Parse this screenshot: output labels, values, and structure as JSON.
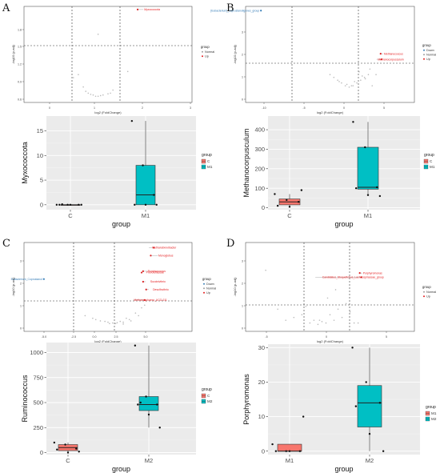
{
  "panels": [
    {
      "letter": "A",
      "volcano": {
        "x_label": "log2 (FoldChange)",
        "y_label": "-log10 (p-adj)",
        "x_ticks": [
          "0",
          "1",
          "2",
          "3"
        ],
        "y_ticks": [
          "0.6",
          "0.9",
          "1.2",
          "1.5",
          "1.8"
        ],
        "legend_title": "group",
        "legend_items": [
          {
            "label": "Normal",
            "color": "#9e9e9e"
          },
          {
            "label": "Up",
            "color": "#e41a1c"
          }
        ],
        "labels": [
          {
            "text": "Myxococcota",
            "color": "#e41a1c"
          }
        ]
      },
      "box": {
        "y_label": "Myxococcota",
        "x_label": "group",
        "categories": [
          "C",
          "M1"
        ],
        "y_ticks": [
          "0",
          "5",
          "10",
          "15"
        ],
        "legend_title": "group",
        "legend_items": [
          {
            "label": "C",
            "color": "#f8766d"
          },
          {
            "label": "M1",
            "color": "#00bfc4"
          }
        ]
      }
    },
    {
      "letter": "B",
      "volcano": {
        "x_label": "log2 (FoldChange)",
        "y_label": "-log10 (p-adj)",
        "x_ticks": [
          "-10",
          "-5",
          "0",
          "5"
        ],
        "y_ticks": [
          "0",
          "1",
          "2",
          "3"
        ],
        "legend_title": "group",
        "legend_items": [
          {
            "label": "Down",
            "color": "#377eb8"
          },
          {
            "label": "Normal",
            "color": "#9e9e9e"
          },
          {
            "label": "Up",
            "color": "#e41a1c"
          }
        ],
        "labels": [
          {
            "text": "[Eubacterium]_coprostanoligenes_group",
            "color": "#377eb8"
          },
          {
            "text": "Methanococcus",
            "color": "#e41a1c"
          },
          {
            "text": "Methanocorpusculum",
            "color": "#e41a1c"
          }
        ]
      },
      "box": {
        "y_label": "Methanocorpusculum",
        "x_label": "group",
        "categories": [
          "C",
          "M1"
        ],
        "y_ticks": [
          "0",
          "100",
          "200",
          "300",
          "400"
        ],
        "legend_title": "group",
        "legend_items": [
          {
            "label": "C",
            "color": "#f8766d"
          },
          {
            "label": "M1",
            "color": "#00bfc4"
          }
        ]
      }
    },
    {
      "letter": "C",
      "volcano": {
        "x_label": "log2 (FoldChange)",
        "y_label": "-log10 (p-adj)",
        "x_ticks": [
          "-5.0",
          "-2.5",
          "0.0",
          "2.5",
          "5.0"
        ],
        "y_ticks": [
          "0",
          "1",
          "2",
          "3"
        ],
        "legend_title": "group",
        "legend_items": [
          {
            "label": "Down",
            "color": "#377eb8"
          },
          {
            "label": "Normal",
            "color": "#9e9e9e"
          },
          {
            "label": "Up",
            "color": "#e41a1c"
          }
        ],
        "labels": [
          {
            "text": "Methanobrevibacter",
            "color": "#e41a1c"
          },
          {
            "text": "Monoglobus",
            "color": "#e41a1c"
          },
          {
            "text": "Eubacterium_Coprostanol",
            "color": "#377eb8"
          },
          {
            "text": "Ruminococcus",
            "color": "#e41a1c"
          },
          {
            "text": "Prevotellaceae",
            "color": "#e41a1c"
          },
          {
            "text": "Succinivibrio",
            "color": "#e41a1c"
          },
          {
            "text": "Desulfovibrio",
            "color": "#e41a1c"
          },
          {
            "text": "Methanosphaera_UCG-011",
            "color": "#e41a1c"
          }
        ]
      },
      "box": {
        "y_label": "Ruminococcus",
        "x_label": "group",
        "categories": [
          "C",
          "M2"
        ],
        "y_ticks": [
          "0",
          "250",
          "500",
          "750",
          "1000"
        ],
        "legend_title": "group",
        "legend_items": [
          {
            "label": "C",
            "color": "#f8766d"
          },
          {
            "label": "M2",
            "color": "#00bfc4"
          }
        ]
      }
    },
    {
      "letter": "D",
      "volcano": {
        "x_label": "log2 (FoldChange)",
        "y_label": "-log10 (p-adj)",
        "x_ticks": [
          "-5",
          "0",
          "5"
        ],
        "y_ticks": [
          "0",
          "1",
          "2",
          "3"
        ],
        "legend_title": "group",
        "legend_items": [
          {
            "label": "Normal",
            "color": "#9e9e9e"
          },
          {
            "label": "Up",
            "color": "#e41a1c"
          }
        ],
        "labels": [
          {
            "text": "Porphyromonas",
            "color": "#e41a1c"
          },
          {
            "text": "Candidatus_Stoquefichus_Lachnospiraceae_group",
            "color": "#e41a1c"
          }
        ]
      },
      "box": {
        "y_label": "Porphyromonas",
        "x_label": "group",
        "categories": [
          "M1",
          "M2"
        ],
        "y_ticks": [
          "0",
          "10",
          "20",
          "30"
        ],
        "legend_title": "group",
        "legend_items": [
          {
            "label": "M1",
            "color": "#f8766d"
          },
          {
            "label": "M2",
            "color": "#00bfc4"
          }
        ]
      }
    }
  ],
  "chart_data": [
    {
      "type": "scatter",
      "panel": "A",
      "series": [
        {
          "name": "Normal",
          "x": [
            0.9,
            1.0,
            1.1,
            1.2,
            1.3,
            1.4,
            1.5,
            1.6,
            1.05,
            1.15,
            1.35,
            1.55,
            1.25,
            0.8,
            1.3,
            1.9
          ],
          "y": [
            0.95,
            0.75,
            0.65,
            0.62,
            0.6,
            0.62,
            0.64,
            0.7,
            0.68,
            0.63,
            0.61,
            0.65,
            0.6,
            0.9,
            1.6,
            1.0
          ]
        },
        {
          "name": "Up",
          "x": [
            2.1
          ],
          "y": [
            2.0
          ]
        }
      ],
      "xlim": [
        -0.2,
        3.2
      ],
      "ylim": [
        0.5,
        2.05
      ]
    },
    {
      "type": "box",
      "panel": "A",
      "categories": [
        "C",
        "M1"
      ],
      "boxes": [
        {
          "min": 0,
          "q1": 0,
          "median": 0,
          "q3": 0,
          "max": 0
        },
        {
          "min": 0,
          "q1": 0,
          "median": 2,
          "q3": 8,
          "max": 17
        }
      ],
      "points": [
        {
          "group": "C",
          "values": [
            0,
            0,
            0,
            0,
            0,
            0,
            0.1
          ]
        },
        {
          "group": "M1",
          "values": [
            17,
            8,
            2,
            0,
            0,
            0
          ]
        }
      ],
      "ylim": [
        -1,
        18
      ]
    },
    {
      "type": "scatter",
      "panel": "B",
      "series": [
        {
          "name": "Down",
          "x": [
            -11
          ],
          "y": [
            3.3
          ]
        },
        {
          "name": "Normal",
          "x": [
            -2,
            -1,
            -0.5,
            0,
            0.5,
            1,
            1.5,
            2,
            2.5,
            3,
            -1.5,
            0.2,
            0.8,
            1.2,
            2.2,
            3.2,
            4,
            0.4,
            1.8,
            2.6,
            -0.8,
            3.5
          ],
          "y": [
            1.0,
            0.8,
            0.7,
            0.6,
            0.55,
            0.6,
            0.7,
            0.8,
            0.9,
            1.0,
            0.9,
            0.65,
            0.6,
            0.75,
            0.95,
            1.2,
            1.0,
            1.4,
            1.1,
            0.85,
            0.75,
            0.6
          ]
        },
        {
          "name": "Up",
          "x": [
            4.6,
            4.7
          ],
          "y": [
            1.75,
            1.55
          ]
        }
      ],
      "xlim": [
        -13,
        9
      ],
      "ylim": [
        0,
        3.45
      ]
    },
    {
      "type": "box",
      "panel": "B",
      "categories": [
        "C",
        "M1"
      ],
      "boxes": [
        {
          "min": 0,
          "q1": 15,
          "median": 30,
          "q3": 45,
          "max": 70
        },
        {
          "min": 65,
          "q1": 95,
          "median": 105,
          "q3": 310,
          "max": 440
        }
      ],
      "points": [
        {
          "group": "C",
          "values": [
            70,
            40,
            30,
            10,
            5,
            90
          ]
        },
        {
          "group": "M1",
          "values": [
            440,
            310,
            105,
            100,
            65,
            60
          ]
        }
      ],
      "ylim": [
        -10,
        470
      ]
    },
    {
      "type": "scatter",
      "panel": "C",
      "series": [
        {
          "name": "Down",
          "x": [
            -4.2
          ],
          "y": [
            2.0
          ]
        },
        {
          "name": "Normal",
          "x": [
            -1,
            -0.5,
            0,
            0.5,
            1,
            1.5,
            2,
            -0.8,
            0.3,
            0.8,
            1.2,
            1.8,
            2.2,
            -1.5,
            0.1,
            0.6,
            1.4,
            -0.2,
            2.4,
            1.0
          ],
          "y": [
            0.5,
            0.4,
            0.35,
            0.3,
            0.35,
            0.4,
            0.6,
            0.45,
            0.32,
            0.38,
            0.5,
            0.7,
            0.9,
            0.6,
            0.3,
            0.33,
            0.45,
            0.38,
            1.0,
            0.28
          ]
        },
        {
          "name": "Up",
          "x": [
            3.0,
            2.8,
            2.3,
            2.2,
            2.3,
            2.5,
            2.4
          ],
          "y": [
            3.2,
            2.9,
            2.3,
            2.25,
            1.9,
            1.6,
            1.2
          ]
        }
      ],
      "xlim": [
        -5.5,
        5.5
      ],
      "ylim": [
        0,
        3.4
      ]
    },
    {
      "type": "box",
      "panel": "C",
      "categories": [
        "C",
        "M2"
      ],
      "boxes": [
        {
          "min": 0,
          "q1": 20,
          "median": 50,
          "q3": 80,
          "max": 100
        },
        {
          "min": 250,
          "q1": 420,
          "median": 480,
          "q3": 560,
          "max": 1070
        }
      ],
      "points": [
        {
          "group": "C",
          "values": [
            100,
            80,
            40,
            30,
            0,
            10
          ]
        },
        {
          "group": "M2",
          "values": [
            1070,
            560,
            480,
            480,
            380,
            250,
            500
          ]
        }
      ],
      "ylim": [
        -20,
        1100
      ]
    },
    {
      "type": "scatter",
      "panel": "D",
      "series": [
        {
          "name": "Normal",
          "x": [
            -4,
            -2,
            -1,
            0,
            1,
            2,
            3,
            4,
            -3,
            -0.5,
            0.5,
            1.5,
            2.5,
            3.5,
            -5,
            -1.5,
            0.2,
            1.2,
            2.2,
            4.5,
            -6.5,
            5
          ],
          "y": [
            0.4,
            0.6,
            0.3,
            0.25,
            0.3,
            0.4,
            0.5,
            0.7,
            0.5,
            0.4,
            0.35,
            0.6,
            0.8,
            1.0,
            0.8,
            0.9,
            0.4,
            1.2,
            1.5,
            0.3,
            2.2,
            0.3
          ]
        },
        {
          "name": "Up",
          "x": [
            5.2,
            5.4
          ],
          "y": [
            2.1,
            1.95
          ]
        }
      ],
      "xlim": [
        -9,
        12
      ],
      "ylim": [
        0,
        3.2
      ]
    },
    {
      "type": "box",
      "panel": "D",
      "categories": [
        "M1",
        "M2"
      ],
      "boxes": [
        {
          "min": 0,
          "q1": 0,
          "median": 0,
          "q3": 2,
          "max": 2
        },
        {
          "min": 0,
          "q1": 7,
          "median": 14,
          "q3": 19,
          "max": 30
        }
      ],
      "points": [
        {
          "group": "M1",
          "values": [
            2,
            0,
            0,
            0,
            0,
            10
          ]
        },
        {
          "group": "M2",
          "values": [
            30,
            20,
            14,
            13,
            5,
            0
          ]
        }
      ],
      "ylim": [
        -1,
        31
      ]
    }
  ]
}
